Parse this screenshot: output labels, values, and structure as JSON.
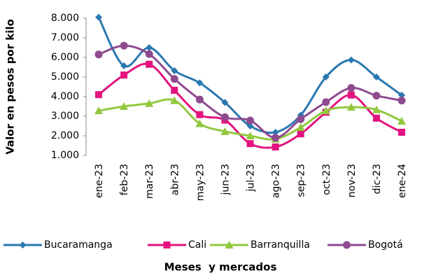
{
  "chart_data": {
    "type": "line",
    "y_label": "Valor en pesos por kilo",
    "x_label": "Meses  y mercados",
    "categories": [
      "ene-23",
      "feb-23",
      "mar-23",
      "abr-23",
      "may-23",
      "jun-23",
      "jul-23",
      "ago-23",
      "sep-23",
      "oct-23",
      "nov-23",
      "dic-23",
      "ene-24"
    ],
    "series": [
      {
        "name": "Bucaramanga",
        "color": "#2a78b0",
        "marker": "diamond",
        "values": [
          8050,
          5570,
          6500,
          5320,
          4700,
          3700,
          2500,
          2180,
          3050,
          5000,
          5870,
          5000,
          4070
        ]
      },
      {
        "name": "Cali",
        "color": "#e3137f",
        "marker": "square",
        "values": [
          4100,
          5100,
          5650,
          4320,
          3080,
          2800,
          1600,
          1430,
          2100,
          3200,
          4080,
          2900,
          2180
        ]
      },
      {
        "name": "Barranquilla",
        "color": "#92c83e",
        "marker": "triangle",
        "values": [
          3280,
          3500,
          3650,
          3800,
          2620,
          2220,
          2000,
          1830,
          2430,
          3280,
          3460,
          3330,
          2750
        ]
      },
      {
        "name": "Bogotá",
        "color": "#8e4a8f",
        "marker": "circle",
        "values": [
          6150,
          6600,
          6170,
          4900,
          3850,
          2950,
          2780,
          1900,
          2850,
          3720,
          4440,
          4050,
          3800
        ]
      }
    ],
    "ylim": [
      1000,
      8000
    ],
    "yticks": [
      {
        "value": 1000,
        "label": "1.000"
      },
      {
        "value": 2000,
        "label": "2.000"
      },
      {
        "value": 3000,
        "label": "3.000"
      },
      {
        "value": 4000,
        "label": "4.000"
      },
      {
        "value": 5000,
        "label": "5.000"
      },
      {
        "value": 6000,
        "label": "6.000"
      },
      {
        "value": 7000,
        "label": "7.000"
      },
      {
        "value": 8000,
        "label": "8.000"
      }
    ],
    "grid": false,
    "legend": "bottom"
  }
}
